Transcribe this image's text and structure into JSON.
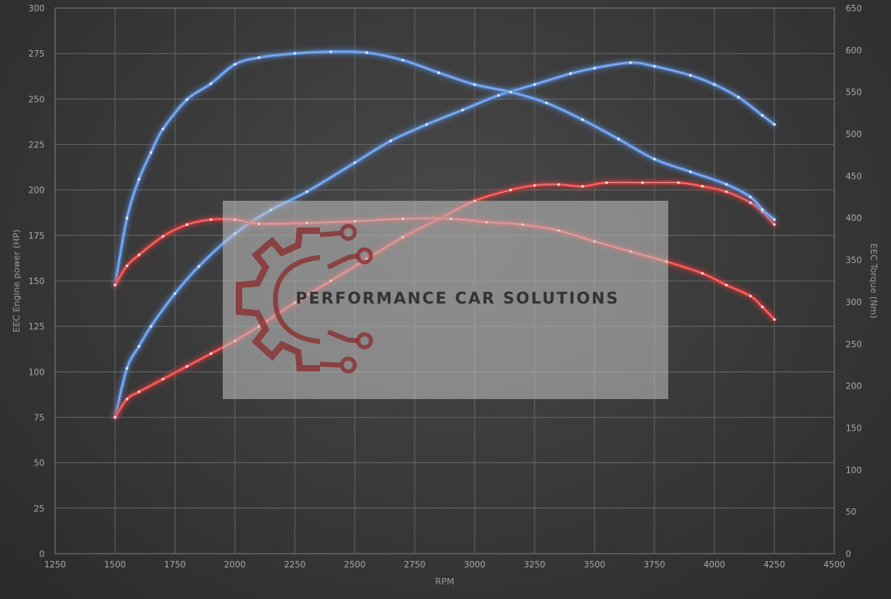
{
  "chart_data": {
    "type": "line",
    "xlabel": "RPM",
    "ylabel_left": "EEC Engine power (HP)",
    "ylabel_right": "EEC Torque (Nm)",
    "xlim": [
      1250,
      4500
    ],
    "ylim_left": [
      0,
      300
    ],
    "ylim_right": [
      0,
      650
    ],
    "x_ticks": [
      1250,
      1500,
      1750,
      2000,
      2250,
      2500,
      2750,
      3000,
      3250,
      3500,
      3750,
      4000,
      4250,
      4500
    ],
    "y_ticks_left": [
      0,
      25,
      50,
      75,
      100,
      125,
      150,
      175,
      200,
      225,
      250,
      275,
      300
    ],
    "y_ticks_right": [
      0,
      50,
      100,
      150,
      200,
      250,
      300,
      350,
      400,
      450,
      500,
      550,
      600,
      650
    ],
    "grid": true,
    "series": [
      {
        "axis": "left",
        "color": "#5a8fe0",
        "x": [
          1500,
          1550,
          1600,
          1650,
          1750,
          1850,
          2000,
          2150,
          2300,
          2500,
          2650,
          2800,
          2950,
          3100,
          3250,
          3400,
          3500,
          3650,
          3750,
          3900,
          4000,
          4100,
          4200,
          4250
        ],
        "y": [
          75,
          102,
          114,
          125,
          143,
          158,
          176,
          189,
          199,
          215,
          227,
          236,
          244,
          252,
          258,
          264,
          267,
          270,
          268,
          263,
          258,
          251,
          241,
          236
        ]
      },
      {
        "axis": "left",
        "color": "#e03a3a",
        "x": [
          1500,
          1550,
          1600,
          1700,
          1800,
          1900,
          2000,
          2100,
          2250,
          2400,
          2550,
          2700,
          2850,
          3000,
          3150,
          3250,
          3350,
          3450,
          3550,
          3700,
          3850,
          3950,
          4050,
          4150,
          4200,
          4250
        ],
        "y": [
          75,
          85,
          89,
          96,
          103,
          110,
          117,
          125,
          138,
          150,
          162,
          174,
          184,
          194,
          200,
          202.5,
          203,
          202,
          204,
          204,
          204,
          202,
          199,
          193,
          188,
          181
        ]
      },
      {
        "axis": "right",
        "color": "#5a8fe0",
        "x": [
          1500,
          1550,
          1600,
          1650,
          1700,
          1800,
          1900,
          2000,
          2100,
          2250,
          2400,
          2550,
          2700,
          2850,
          3000,
          3150,
          3300,
          3450,
          3600,
          3750,
          3900,
          4050,
          4150,
          4200,
          4250
        ],
        "y": [
          320,
          400,
          446,
          478,
          506,
          541,
          560,
          583,
          591,
          596,
          598,
          597,
          588,
          573,
          559,
          550,
          537,
          517,
          494,
          470,
          455,
          440,
          425,
          410,
          398
        ]
      },
      {
        "axis": "right",
        "color": "#e03a3a",
        "x": [
          1500,
          1550,
          1600,
          1700,
          1800,
          1900,
          2000,
          2100,
          2300,
          2500,
          2700,
          2900,
          3050,
          3200,
          3350,
          3500,
          3650,
          3800,
          3950,
          4050,
          4150,
          4200,
          4250
        ],
        "y": [
          320,
          343,
          356,
          378,
          392,
          398,
          398,
          393,
          394,
          396,
          399,
          399,
          395,
          392,
          385,
          372,
          360,
          348,
          334,
          320,
          307,
          294,
          279
        ]
      }
    ]
  },
  "watermark": {
    "text": "PERFORMANCE CAR SOLUTIONS",
    "icon": "gear-circuit-icon",
    "logo_color": "#8b2222"
  }
}
